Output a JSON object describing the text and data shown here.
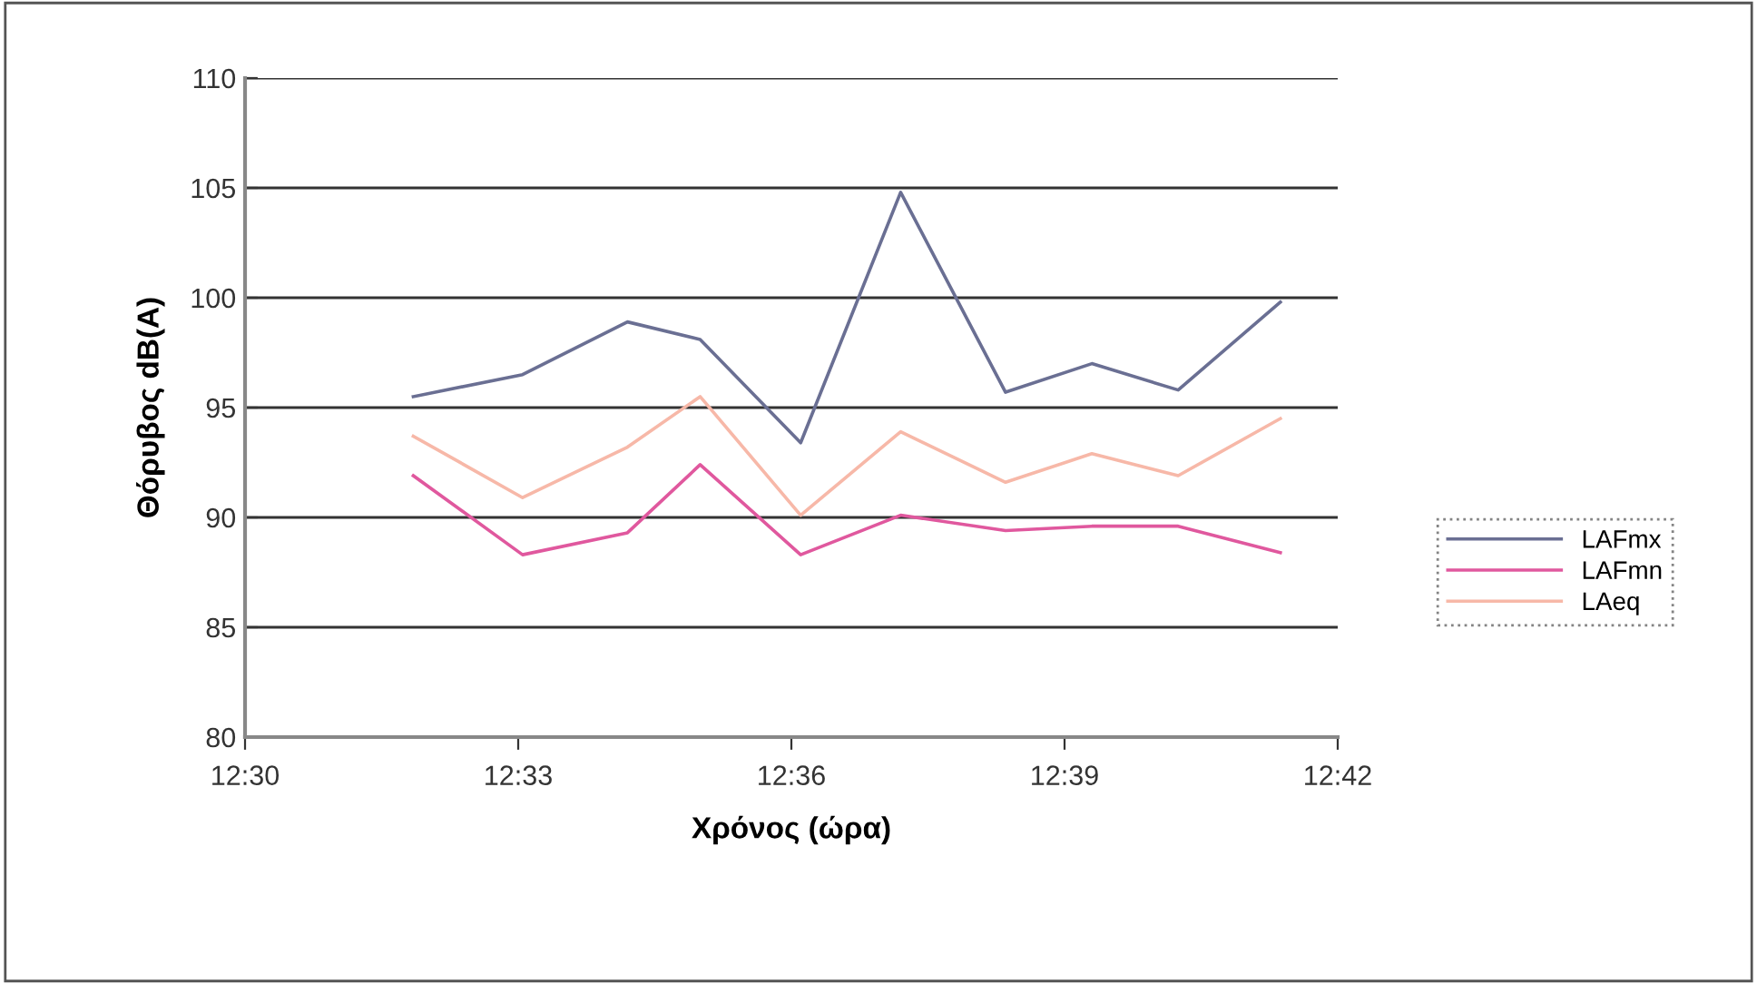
{
  "chart_data": {
    "type": "line",
    "xlabel": "Χρόνος (ώρα)",
    "ylabel": "Θόρυβος dB(A)",
    "x": [
      12.5308,
      12.5508,
      12.57,
      12.5833,
      12.6017,
      12.62,
      12.6392,
      12.655,
      12.6708,
      12.6895
    ],
    "series": [
      {
        "name": "LAFmx",
        "color": "#6a6f93",
        "values": [
          95.5,
          96.5,
          98.9,
          98.1,
          93.4,
          104.8,
          95.7,
          97.0,
          95.8,
          99.8
        ]
      },
      {
        "name": "LAFmn",
        "color": "#e0589e",
        "values": [
          91.9,
          88.3,
          89.3,
          92.4,
          88.3,
          90.1,
          89.4,
          89.6,
          89.6,
          88.4
        ]
      },
      {
        "name": "LAeq",
        "color": "#f7b8a8",
        "values": [
          93.7,
          90.9,
          93.2,
          95.5,
          90.1,
          93.9,
          91.6,
          92.9,
          91.9,
          94.5
        ]
      }
    ],
    "xlim": [
      12.5,
      12.7
    ],
    "xticks": [
      {
        "value": 12.5,
        "label": "12:30"
      },
      {
        "value": 12.55,
        "label": "12:33"
      },
      {
        "value": 12.6,
        "label": "12:36"
      },
      {
        "value": 12.65,
        "label": "12:39"
      },
      {
        "value": 12.7,
        "label": "12:42"
      }
    ],
    "ylim": [
      80,
      110
    ],
    "yticks": [
      80,
      85,
      90,
      95,
      100,
      105,
      110
    ],
    "grid": "y",
    "legend": "right",
    "marker": "none",
    "line_style": "solid"
  }
}
